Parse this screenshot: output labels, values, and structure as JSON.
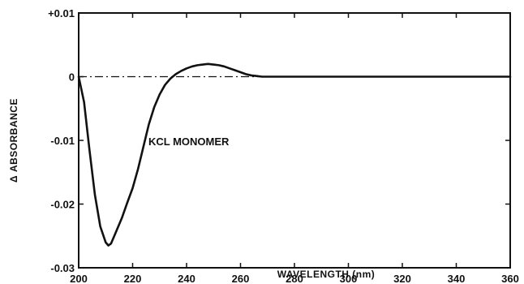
{
  "chart_data": {
    "type": "line",
    "xlabel": "WAVELENGTH (nm)",
    "ylabel": "Δ ABSORBANCE",
    "xlim": [
      200,
      360
    ],
    "ylim": [
      -0.03,
      0.01
    ],
    "x_ticks": [
      200,
      220,
      240,
      260,
      280,
      300,
      320,
      340,
      360
    ],
    "y_ticks": [
      0.01,
      0,
      -0.01,
      -0.02,
      -0.03
    ],
    "y_tick_labels": [
      "+0.01",
      "0",
      "-0.01",
      "-0.02",
      "-0.03"
    ],
    "zero_reference_line": true,
    "grid": false,
    "annotation": {
      "text": "KCL MONOMER",
      "x": 229,
      "y": -0.0133
    },
    "series": [
      {
        "x": [
          200,
          202,
          204,
          206,
          208,
          210,
          211,
          212,
          213,
          214,
          216,
          218,
          220,
          222,
          224,
          226,
          228,
          230,
          232,
          234,
          236,
          238,
          240,
          242,
          244,
          246,
          248,
          250,
          252,
          254,
          256,
          258,
          260,
          262,
          264,
          266,
          268,
          270,
          272,
          274,
          280,
          290,
          300,
          320,
          340,
          360
        ],
        "y": [
          0.0,
          -0.004,
          -0.0115,
          -0.0185,
          -0.0235,
          -0.026,
          -0.0265,
          -0.0262,
          -0.0252,
          -0.0242,
          -0.0222,
          -0.0198,
          -0.0175,
          -0.0145,
          -0.011,
          -0.0075,
          -0.0048,
          -0.0028,
          -0.0013,
          -0.0003,
          0.0004,
          0.0009,
          0.0013,
          0.0016,
          0.0018,
          0.0019,
          0.002,
          0.0019,
          0.0018,
          0.0016,
          0.0013,
          0.001,
          0.0007,
          0.0004,
          0.0002,
          0.0001,
          0.0,
          0.0,
          0.0,
          0.0,
          0.0,
          0.0,
          0.0,
          0.0,
          0.0,
          0.0
        ]
      }
    ]
  }
}
